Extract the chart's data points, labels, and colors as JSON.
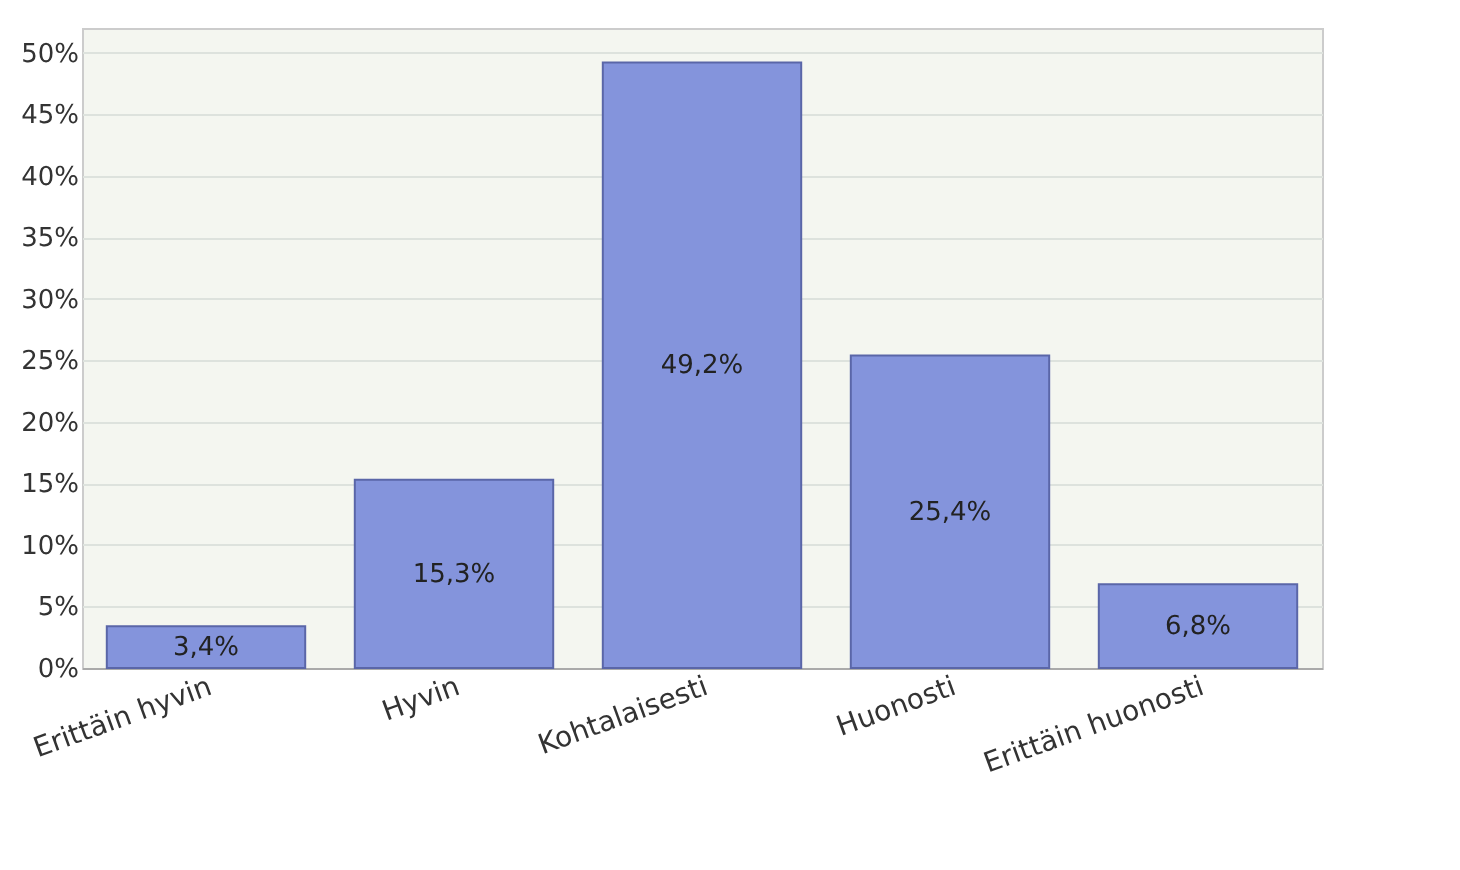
{
  "chart_data": {
    "type": "bar",
    "categories": [
      "Erittäin hyvin",
      "Hyvin",
      "Kohtalaisesti",
      "Huonosti",
      "Erittäin huonosti"
    ],
    "values": [
      3.4,
      15.3,
      49.2,
      25.4,
      6.8
    ],
    "value_labels": [
      "3,4%",
      "15,3%",
      "49,2%",
      "25,4%",
      "6,8%"
    ],
    "color": "#8494dc",
    "ylim": [
      0,
      52
    ],
    "yticks": [
      {
        "value": 0,
        "label": "0%"
      },
      {
        "value": 5,
        "label": "5%"
      },
      {
        "value": 10,
        "label": "10%"
      },
      {
        "value": 15,
        "label": "15%"
      },
      {
        "value": 20,
        "label": "20%"
      },
      {
        "value": 25,
        "label": "25%"
      },
      {
        "value": 30,
        "label": "30%"
      },
      {
        "value": 35,
        "label": "35%"
      },
      {
        "value": 40,
        "label": "40%"
      },
      {
        "value": 45,
        "label": "45%"
      },
      {
        "value": 50,
        "label": "50%"
      }
    ],
    "grid": "y"
  }
}
